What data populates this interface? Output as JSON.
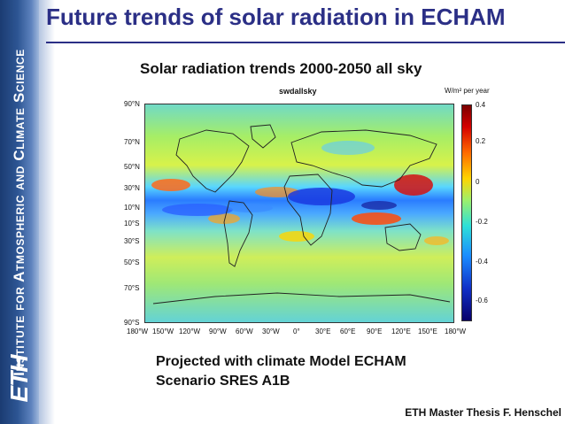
{
  "sidebar": {
    "institute_text": "Institute for Atmospheric and Climate Science",
    "logo_text": "ETH"
  },
  "slide": {
    "title": "Future trends of solar radiation in ECHAM",
    "subtitle": "Solar radiation trends 2000-2050 all sky",
    "caption_line1": "Projected with climate Model ECHAM",
    "caption_line2": "Scenario SRES A1B",
    "footer": "ETH Master Thesis F. Henschel"
  },
  "figure": {
    "variable": "swdallsky",
    "units": "W/m² per year",
    "lat_labels": [
      "90°N",
      "70°N",
      "50°N",
      "30°N",
      "10°N",
      "10°S",
      "30°S",
      "50°S",
      "70°S",
      "90°S"
    ],
    "lon_labels": [
      "180°W",
      "150°W",
      "120°W",
      "90°W",
      "60°W",
      "30°W",
      "0°",
      "30°E",
      "60°E",
      "90°E",
      "120°E",
      "150°E",
      "180°W"
    ],
    "colorbar_ticks": [
      "0.4",
      "0.2",
      "0",
      "-0.2",
      "-0.4",
      "-0.6"
    ]
  },
  "colors": {
    "title": "#2b2f86",
    "sidebar": "#2d5593"
  }
}
